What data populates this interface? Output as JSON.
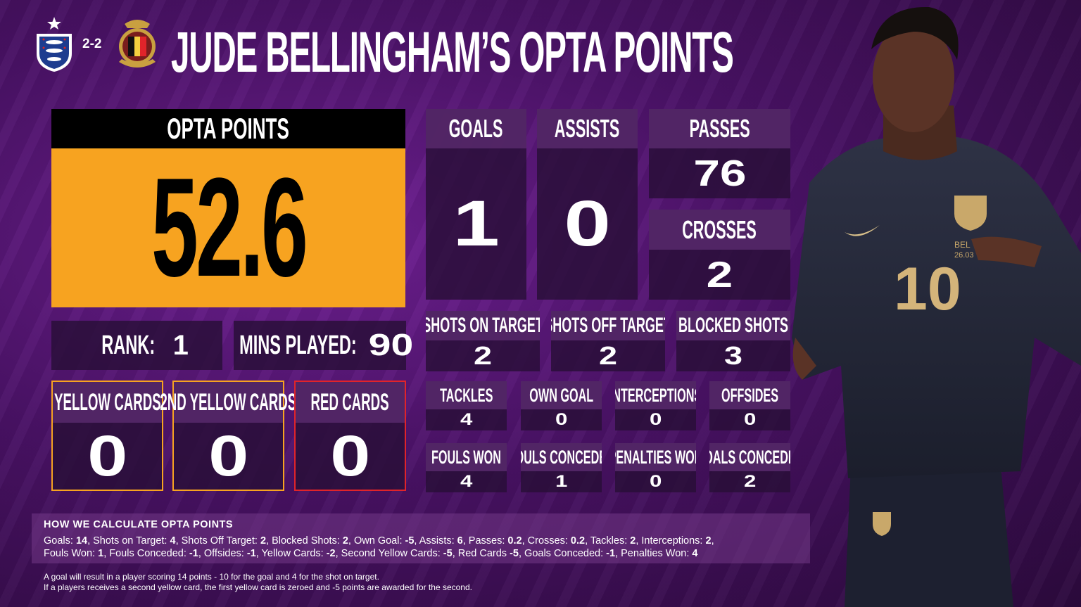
{
  "header": {
    "score": "2-2",
    "title": "JUDE BELLINGHAM’S OPTA POINTS",
    "home_crest": "england-crest",
    "away_crest": "belgium-crest"
  },
  "opta": {
    "label": "OPTA POINTS",
    "value": "52.6"
  },
  "rank": {
    "label": "RANK:",
    "value": "1"
  },
  "mins": {
    "label": "MINS PLAYED:",
    "value": "90"
  },
  "cards": [
    {
      "label": "YELLOW CARDS",
      "value": "0",
      "border": "#f7a320"
    },
    {
      "label": "2ND YELLOW CARDS",
      "value": "0",
      "border": "#f7a320"
    },
    {
      "label": "RED CARDS",
      "value": "0",
      "border": "#e0242a"
    }
  ],
  "stats": {
    "goals": {
      "label": "GOALS",
      "value": "1"
    },
    "assists": {
      "label": "ASSISTS",
      "value": "0"
    },
    "passes": {
      "label": "PASSES",
      "value": "76"
    },
    "crosses": {
      "label": "CROSSES",
      "value": "2"
    },
    "shots_on_target": {
      "label": "SHOTS ON TARGET",
      "value": "2"
    },
    "shots_off_target": {
      "label": "SHOTS OFF TARGET",
      "value": "2"
    },
    "blocked_shots": {
      "label": "BLOCKED SHOTS",
      "value": "3"
    },
    "tackles": {
      "label": "TACKLES",
      "value": "4"
    },
    "own_goal": {
      "label": "OWN GOAL",
      "value": "0"
    },
    "interceptions": {
      "label": "INTERCEPTIONS",
      "value": "0"
    },
    "offsides": {
      "label": "OFFSIDES",
      "value": "0"
    },
    "fouls_won": {
      "label": "FOULS WON",
      "value": "4"
    },
    "fouls_conceded": {
      "label": "FOULS CONCEDED",
      "value": "1"
    },
    "penalties_won": {
      "label": "PENALTIES WON",
      "value": "0"
    },
    "goals_conceded": {
      "label": "GOALS CONCEDED",
      "value": "2"
    }
  },
  "info": {
    "title": "HOW WE CALCULATE OPTA POINTS",
    "line1": [
      [
        "Goals: ",
        "14"
      ],
      [
        ", Shots on Target: ",
        "4"
      ],
      [
        ", Shots Off Target: ",
        "2"
      ],
      [
        ", Blocked Shots: ",
        "2"
      ],
      [
        ", Own Goal: ",
        "-5"
      ],
      [
        ", Assists: ",
        "6"
      ],
      [
        ", Passes: ",
        "0.2"
      ],
      [
        ", Crosses: ",
        "0.2"
      ],
      [
        ", Tackles: ",
        "2"
      ],
      [
        ", Interceptions: ",
        "2"
      ],
      [
        ",",
        ""
      ]
    ],
    "line2": [
      [
        "Fouls Won: ",
        "1"
      ],
      [
        ", Fouls Conceded: ",
        "-1"
      ],
      [
        ", Offsides: ",
        "-1"
      ],
      [
        ", Yellow Cards: ",
        "-2"
      ],
      [
        ", Second Yellow Cards: ",
        "-5"
      ],
      [
        ", Red Cards ",
        "-5"
      ],
      [
        ", Goals Conceded: ",
        "-1"
      ],
      [
        ", Penalties Won: ",
        "4"
      ]
    ],
    "foot1": "A goal will result in a player scoring 14 points - 10 for the goal and 4 for the shot on target.",
    "foot2": "If a players receives a second yellow card, the first yellow card is zeroed and -5 points are awarded for the second."
  },
  "player": {
    "shirt_number": "10"
  },
  "colors": {
    "accent": "#f7a320",
    "red": "#e0242a",
    "bg": "#4a1266",
    "tile": "#281037",
    "tile_head": "#552869"
  }
}
